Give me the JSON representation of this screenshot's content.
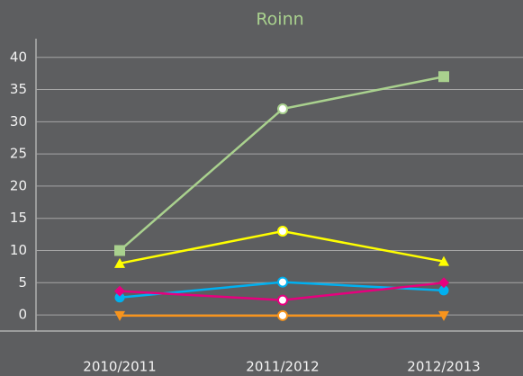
{
  "chart_data": {
    "type": "line",
    "title": "Roinn",
    "categories": [
      "2010/2011",
      "2011/2012",
      "2012/2013"
    ],
    "ylim": [
      -2.5,
      42.9
    ],
    "yticks": [
      0,
      5,
      10,
      15,
      20,
      25,
      30,
      35,
      40
    ],
    "grid": true,
    "series": [
      {
        "color": "#a9d18e",
        "values": [
          10,
          32,
          37
        ],
        "markers": [
          "square",
          "circle-open",
          "square"
        ]
      },
      {
        "color": "#ffff00",
        "values": [
          8,
          13,
          8.3
        ],
        "markers": [
          "triangle",
          "circle-open",
          "triangle"
        ]
      },
      {
        "color": "#00b0f0",
        "values": [
          2.7,
          5.1,
          3.8
        ],
        "markers": [
          "circle",
          "circle-open",
          "circle"
        ]
      },
      {
        "color": "#e6007e",
        "values": [
          3.7,
          2.3,
          5
        ],
        "markers": [
          "diamond",
          "circle-open",
          "diamond"
        ]
      },
      {
        "color": "#f7941d",
        "values": [
          -0.1,
          -0.1,
          -0.1
        ],
        "markers": [
          "triangle-down",
          "circle-open",
          "triangle-down"
        ]
      }
    ]
  }
}
